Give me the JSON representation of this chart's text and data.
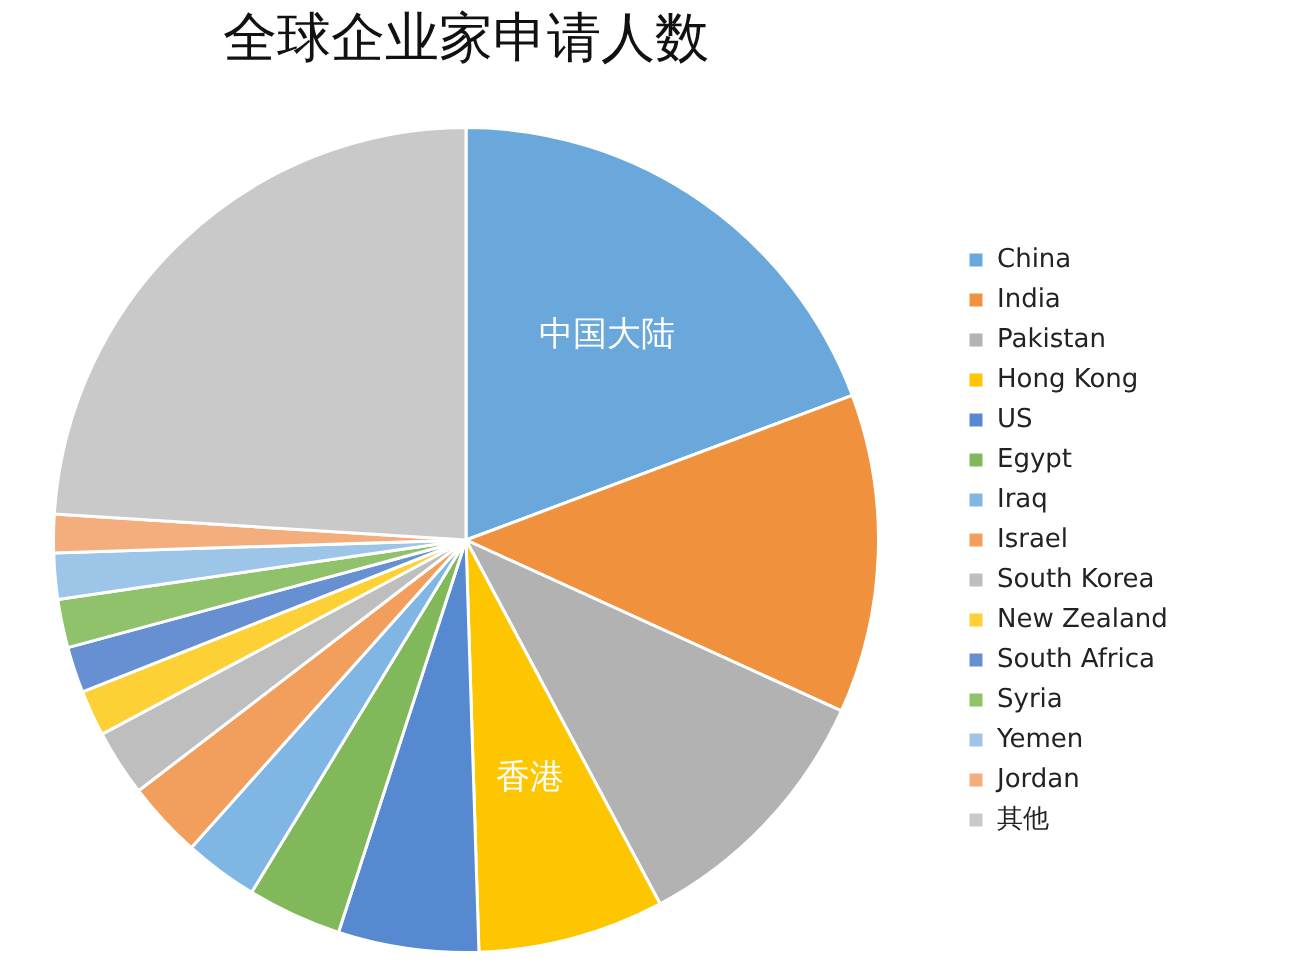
{
  "chart_data": {
    "type": "pie",
    "title": "全球企业家申请人数",
    "categories": [
      "China",
      "India",
      "Pakistan",
      "Hong Kong",
      "US",
      "Egypt",
      "Iraq",
      "Israel",
      "South Korea",
      "New Zealand",
      "South Africa",
      "Syria",
      "Yemen",
      "Jordan",
      "其他"
    ],
    "values": [
      19.3,
      12.5,
      10.4,
      7.3,
      5.5,
      3.7,
      2.9,
      3.0,
      2.6,
      1.8,
      1.8,
      1.9,
      1.8,
      1.5,
      24.0
    ],
    "colors": [
      "#6aa8dc",
      "#f0913e",
      "#b2b2b2",
      "#fec600",
      "#5689cf",
      "#80b85a",
      "#80b6e4",
      "#f29e5c",
      "#bebebe",
      "#fdd035",
      "#6690d2",
      "#8fc26b",
      "#9cc5e8",
      "#f4ae7e",
      "#c9c9c9"
    ],
    "value_labels": [
      "中国大陆",
      null,
      null,
      "香港",
      null,
      null,
      null,
      null,
      null,
      null,
      null,
      null,
      null,
      null,
      null
    ],
    "legend": "right"
  }
}
